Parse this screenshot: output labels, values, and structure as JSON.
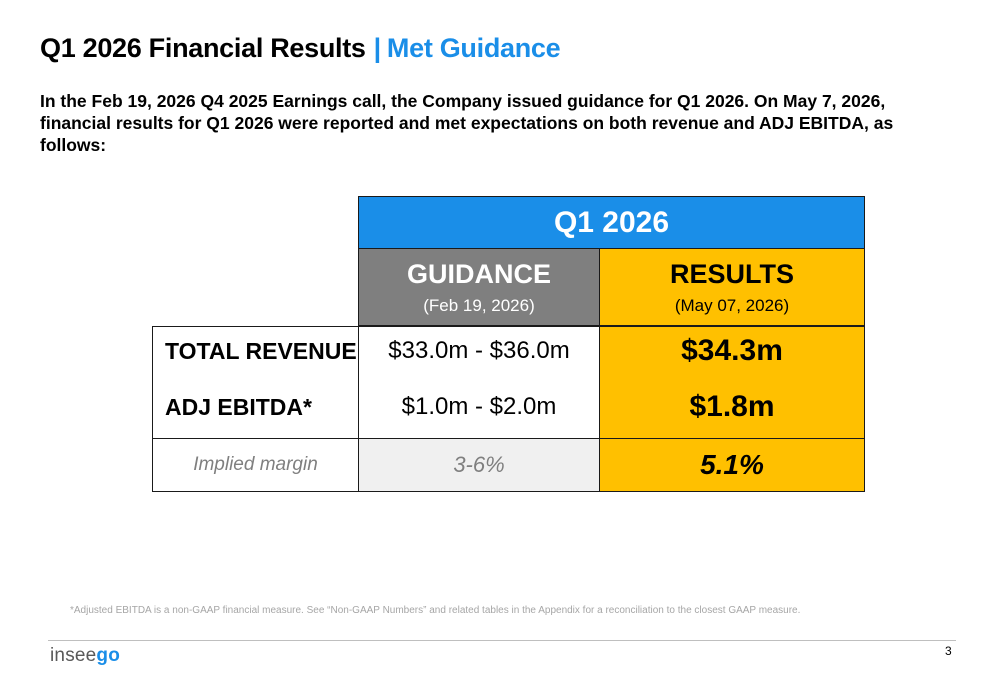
{
  "header": {
    "title": "Q1 2026 Financial Results",
    "separator": "|",
    "subtitle": "Met Guidance"
  },
  "intro": "In the Feb 19, 2026 Q4 2025 Earnings call, the Company issued guidance for Q1 2026. On May 7, 2026, financial results for Q1 2026 were reported and met expectations on both revenue and ADJ EBITDA, as follows:",
  "table": {
    "period": "Q1 2026",
    "guidance": {
      "label": "GUIDANCE",
      "date": "(Feb 19, 2026)"
    },
    "results": {
      "label": "RESULTS",
      "date": "(May 07, 2026)"
    },
    "rows": [
      {
        "label": "TOTAL REVENUE",
        "guidance": "$33.0m - $36.0m",
        "result": "$34.3m"
      },
      {
        "label": "ADJ EBITDA*",
        "guidance": "$1.0m - $2.0m",
        "result": "$1.8m"
      }
    ],
    "implied": {
      "label": "Implied margin",
      "guidance": "3-6%",
      "result": "5.1%"
    }
  },
  "footnote": "*Adjusted EBITDA is a non-GAAP financial measure. See “Non-GAAP Numbers” and related tables in the Appendix for a reconciliation to the closest GAAP measure.",
  "footer": {
    "logo_part1": "insee",
    "logo_part2": "go",
    "page_number": "3"
  },
  "colors": {
    "accent_blue": "#1a8ee8",
    "results_yellow": "#ffc000",
    "guidance_gray": "#7f7f7f"
  }
}
